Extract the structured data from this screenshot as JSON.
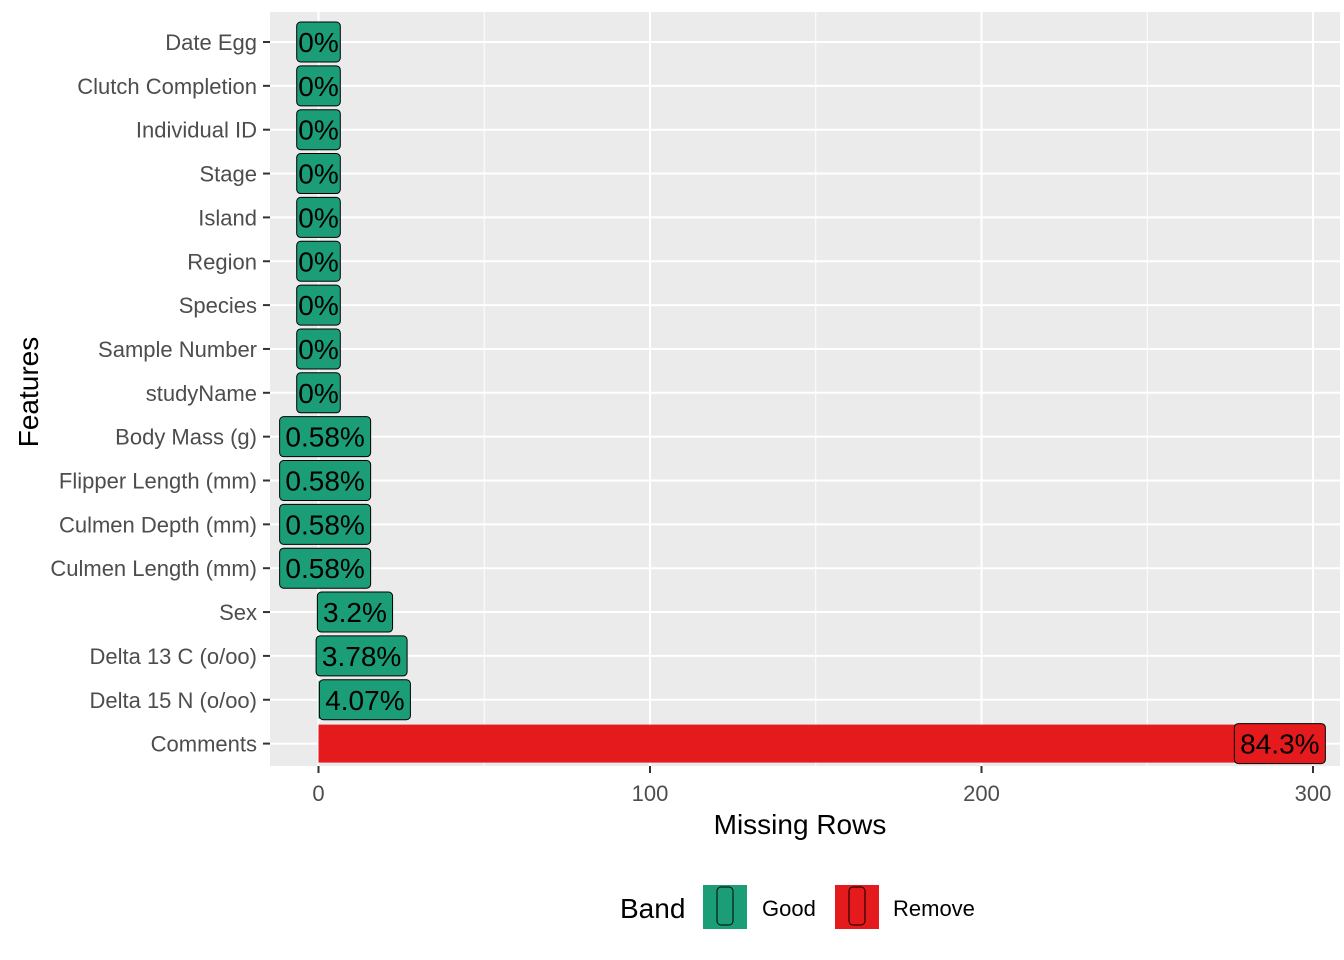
{
  "chart_data": {
    "type": "bar",
    "orientation": "horizontal",
    "xlabel": "Missing Rows",
    "ylabel": "Features",
    "xlim": [
      -14.5,
      304.5
    ],
    "x_ticks": [
      0,
      100,
      200,
      300
    ],
    "x_tick_labels": [
      "0",
      "100",
      "200",
      "300"
    ],
    "grid": true,
    "legend": {
      "title": "Band",
      "placement": "bottom",
      "items": [
        {
          "label": "Good",
          "color": "#1b9e77"
        },
        {
          "label": "Remove",
          "color": "#e41a1c"
        }
      ]
    },
    "bars": [
      {
        "feature": "Date Egg",
        "value": 0,
        "label": "0%",
        "band": "Good"
      },
      {
        "feature": "Clutch Completion",
        "value": 0,
        "label": "0%",
        "band": "Good"
      },
      {
        "feature": "Individual ID",
        "value": 0,
        "label": "0%",
        "band": "Good"
      },
      {
        "feature": "Stage",
        "value": 0,
        "label": "0%",
        "band": "Good"
      },
      {
        "feature": "Island",
        "value": 0,
        "label": "0%",
        "band": "Good"
      },
      {
        "feature": "Region",
        "value": 0,
        "label": "0%",
        "band": "Good"
      },
      {
        "feature": "Species",
        "value": 0,
        "label": "0%",
        "band": "Good"
      },
      {
        "feature": "Sample Number",
        "value": 0,
        "label": "0%",
        "band": "Good"
      },
      {
        "feature": "studyName",
        "value": 0,
        "label": "0%",
        "band": "Good"
      },
      {
        "feature": "Body Mass (g)",
        "value": 2,
        "label": "0.58%",
        "band": "Good"
      },
      {
        "feature": "Flipper Length (mm)",
        "value": 2,
        "label": "0.58%",
        "band": "Good"
      },
      {
        "feature": "Culmen Depth (mm)",
        "value": 2,
        "label": "0.58%",
        "band": "Good"
      },
      {
        "feature": "Culmen Length (mm)",
        "value": 2,
        "label": "0.58%",
        "band": "Good"
      },
      {
        "feature": "Sex",
        "value": 11,
        "label": "3.2%",
        "band": "Good"
      },
      {
        "feature": "Delta 13 C (o/oo)",
        "value": 13,
        "label": "3.78%",
        "band": "Good"
      },
      {
        "feature": "Delta 15 N (o/oo)",
        "value": 14,
        "label": "4.07%",
        "band": "Good"
      },
      {
        "feature": "Comments",
        "value": 290,
        "label": "84.3%",
        "band": "Remove"
      }
    ]
  }
}
